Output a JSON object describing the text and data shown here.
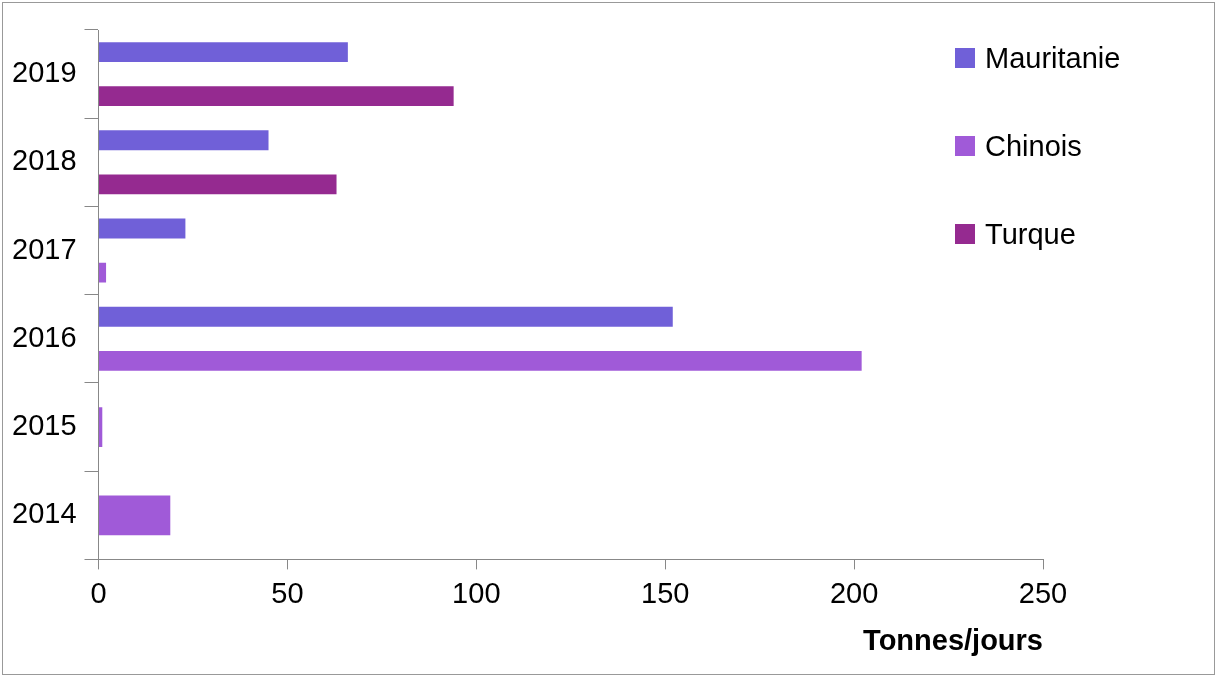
{
  "chart_data": {
    "type": "bar",
    "orientation": "horizontal",
    "xlabel": "Tonnes/jours",
    "categories": [
      "2019",
      "2018",
      "2017",
      "2016",
      "2015",
      "2014"
    ],
    "series": [
      {
        "name": "Mauritanie",
        "color": "#7060d8",
        "values": [
          66,
          45,
          23,
          152,
          null,
          null
        ]
      },
      {
        "name": "Chinois",
        "color": "#a05ad8",
        "values": [
          null,
          null,
          2,
          202,
          1,
          19
        ]
      },
      {
        "name": "Turque",
        "color": "#952a90",
        "values": [
          94,
          63,
          null,
          null,
          null,
          null
        ]
      }
    ],
    "xlim": [
      0,
      250
    ],
    "xticks": [
      0,
      50,
      100,
      150,
      200,
      250
    ],
    "grid": false,
    "legend": "top right"
  }
}
